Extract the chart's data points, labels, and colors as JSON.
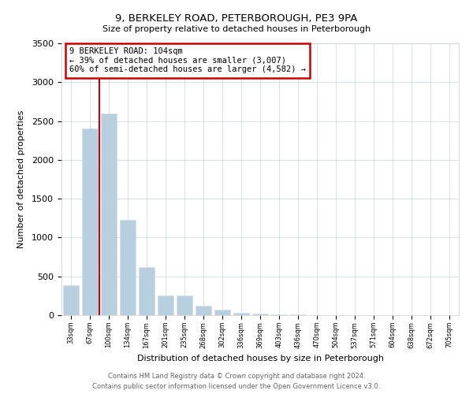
{
  "title": "9, BERKELEY ROAD, PETERBOROUGH, PE3 9PA",
  "subtitle": "Size of property relative to detached houses in Peterborough",
  "xlabel": "Distribution of detached houses by size in Peterborough",
  "ylabel": "Number of detached properties",
  "footer_line1": "Contains HM Land Registry data © Crown copyright and database right 2024.",
  "footer_line2": "Contains public sector information licensed under the Open Government Licence v3.0.",
  "annotation_line1": "9 BERKELEY ROAD: 104sqm",
  "annotation_line2": "← 39% of detached houses are smaller (3,007)",
  "annotation_line3": "60% of semi-detached houses are larger (4,582) →",
  "bar_color": "#b8cfe0",
  "highlight_color": "#cc0000",
  "categories": [
    "33sqm",
    "67sqm",
    "100sqm",
    "134sqm",
    "167sqm",
    "201sqm",
    "235sqm",
    "268sqm",
    "302sqm",
    "336sqm",
    "369sqm",
    "403sqm",
    "436sqm",
    "470sqm",
    "504sqm",
    "537sqm",
    "571sqm",
    "604sqm",
    "638sqm",
    "672sqm",
    "705sqm"
  ],
  "values": [
    390,
    2400,
    2600,
    1230,
    620,
    255,
    255,
    120,
    70,
    35,
    20,
    12,
    8,
    5,
    3,
    2,
    2,
    1,
    1,
    1,
    0
  ],
  "ylim": [
    0,
    3500
  ],
  "yticks": [
    0,
    500,
    1000,
    1500,
    2000,
    2500,
    3000,
    3500
  ],
  "red_line_bar_index": 2
}
